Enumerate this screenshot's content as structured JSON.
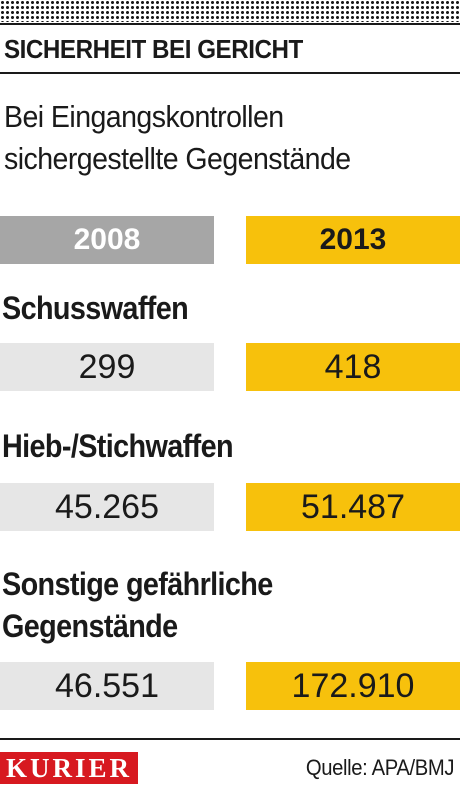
{
  "header": {
    "kicker": "SICHERHEIT BEI GERICHT",
    "subtitle_line1": "Bei Eingangskontrollen",
    "subtitle_line2": "sichergestellte Gegenstände"
  },
  "colors": {
    "year_2008": "#a6a6a6",
    "year_2013": "#f7c10c",
    "value_2008_bg": "#e6e6e6",
    "logo_red": "#d71920"
  },
  "chart_data": {
    "type": "table",
    "columns": [
      "2008",
      "2013"
    ],
    "rows": [
      {
        "category_lines": [
          "Schusswaffen"
        ],
        "values": [
          299,
          418
        ],
        "labels": [
          "299",
          "418"
        ]
      },
      {
        "category_lines": [
          "Hieb-/Stichwaffen"
        ],
        "values": [
          45265,
          51487
        ],
        "labels": [
          "45.265",
          "51.487"
        ]
      },
      {
        "category_lines": [
          "Sonstige gefährliche",
          "Gegenstände"
        ],
        "values": [
          46551,
          172910
        ],
        "labels": [
          "46.551",
          "172.910"
        ]
      }
    ]
  },
  "footer": {
    "logo": "KURIER",
    "source": "Quelle: APA/BMJ"
  }
}
